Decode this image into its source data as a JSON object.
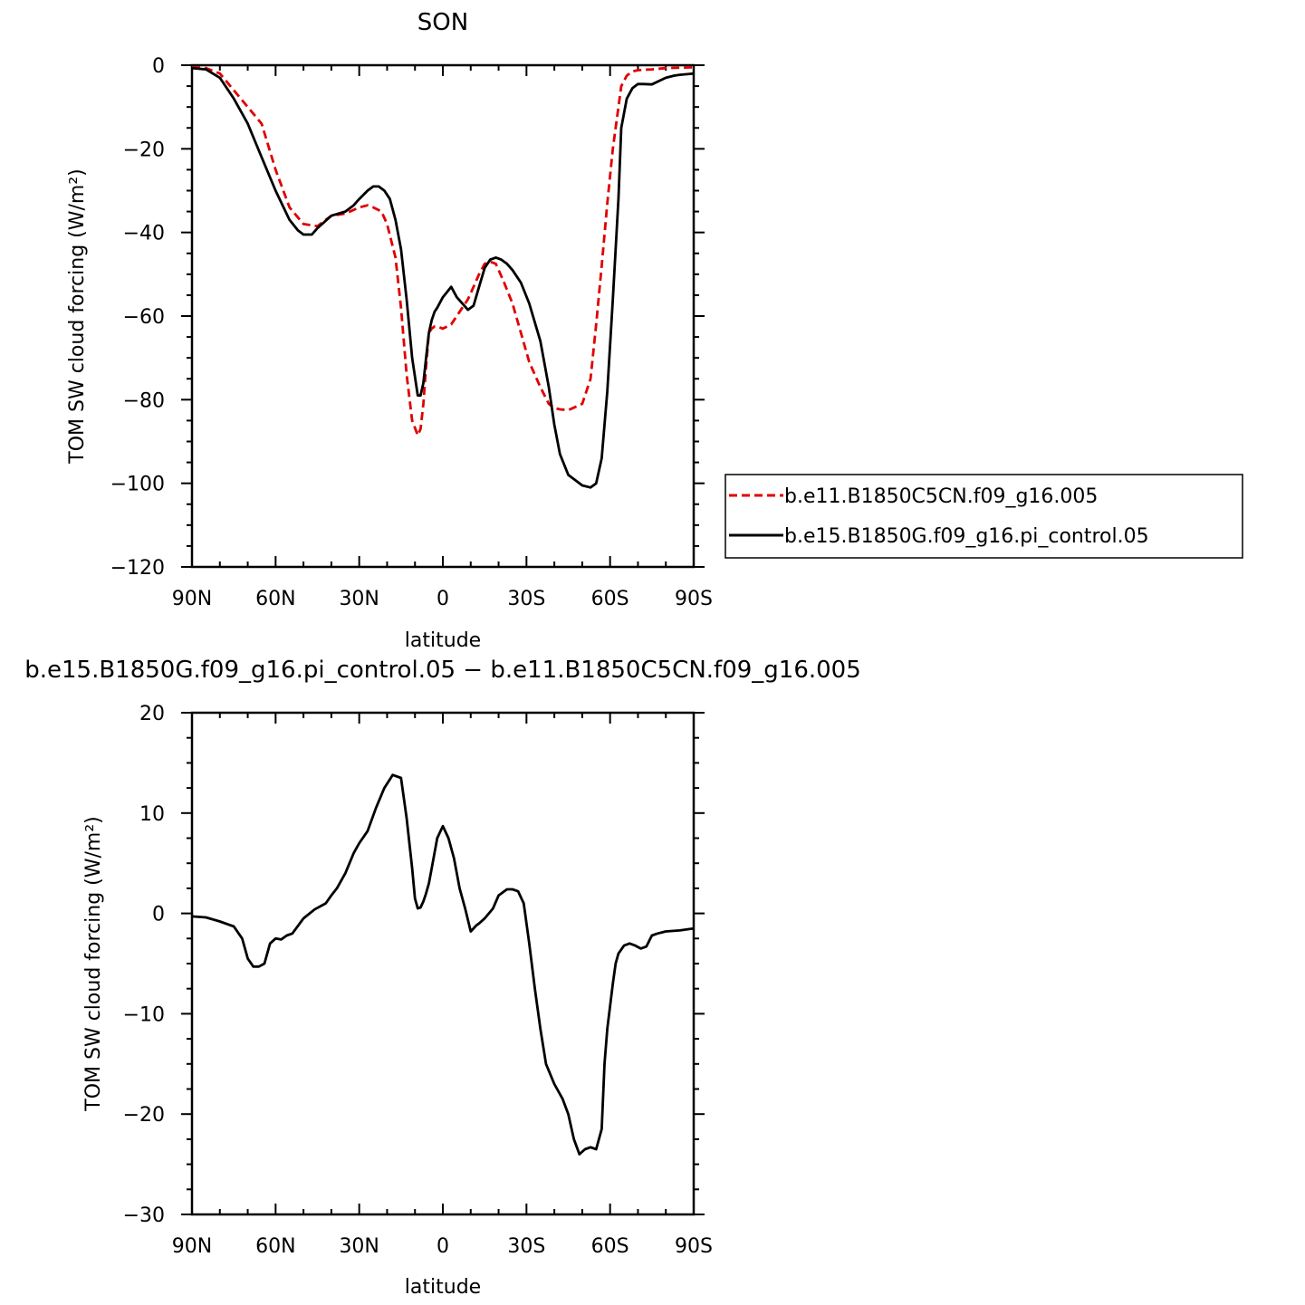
{
  "chart_data": [
    {
      "type": "line",
      "title": "SON",
      "xlabel": "latitude",
      "ylabel": "TOM SW cloud forcing (W/m²)",
      "xlim": [
        90,
        -90
      ],
      "ylim": [
        -120,
        0
      ],
      "x_ticks": [
        90,
        60,
        30,
        0,
        -30,
        -60,
        -90
      ],
      "x_tick_labels": [
        "90N",
        "60N",
        "30N",
        "0",
        "30S",
        "60S",
        "90S"
      ],
      "y_ticks": [
        0,
        -20,
        -40,
        -60,
        -80,
        -100,
        -120
      ],
      "y_tick_labels": [
        "0",
        "−20",
        "−40",
        "−60",
        "−80",
        "−100",
        "−120"
      ],
      "legend_position": "right",
      "series": [
        {
          "name": "b.e11.B1850C5CN.f09_g16.005",
          "color": "#e00000",
          "dash": "dashed",
          "x": [
            90,
            85,
            80,
            75,
            70,
            65,
            60,
            55,
            50,
            45,
            40,
            35,
            30,
            27,
            25,
            22,
            20,
            17,
            15,
            13,
            11,
            9,
            8,
            7,
            6,
            5,
            4,
            3,
            2,
            0,
            -3,
            -5,
            -7,
            -9,
            -11,
            -13,
            -15,
            -17,
            -19,
            -20,
            -22,
            -25,
            -28,
            -31,
            -35,
            -38,
            -40,
            -42,
            -45,
            -50,
            -53,
            -55,
            -57,
            -59,
            -61,
            -63,
            -64,
            -66,
            -68,
            -70,
            -72,
            -75,
            -80,
            -90
          ],
          "y": [
            -0.5,
            -0.7,
            -2,
            -6,
            -10,
            -14,
            -25,
            -34,
            -38,
            -38.5,
            -36,
            -35.5,
            -34,
            -33.5,
            -34,
            -35,
            -38,
            -46,
            -58,
            -74,
            -85,
            -88.5,
            -87,
            -81,
            -72,
            -64,
            -63,
            -62.5,
            -62.5,
            -63,
            -62,
            -60,
            -58,
            -56,
            -53,
            -50,
            -47.5,
            -47,
            -47.5,
            -49,
            -52,
            -57,
            -64,
            -71,
            -77,
            -81,
            -82,
            -82.3,
            -82.5,
            -81,
            -75,
            -62,
            -48,
            -33,
            -20,
            -10,
            -5,
            -2.5,
            -1.5,
            -1.2,
            -1.1,
            -1,
            -0.7,
            -0.5
          ]
        },
        {
          "name": "b.e15.B1850G.f09_g16.pi_control.05",
          "color": "#000000",
          "dash": "solid",
          "x": [
            90,
            85,
            80,
            75,
            70,
            65,
            60,
            55,
            52,
            50,
            47,
            45,
            40,
            35,
            32,
            30,
            27,
            25,
            23,
            21,
            19,
            17,
            15,
            13,
            11,
            9,
            8,
            7,
            6,
            5,
            4,
            3,
            2,
            0,
            -3,
            -5,
            -7,
            -9,
            -11,
            -13,
            -15,
            -17,
            -19,
            -21,
            -23,
            -25,
            -28,
            -31,
            -35,
            -38,
            -40,
            -42,
            -45,
            -50,
            -53,
            -55,
            -57,
            -59,
            -61,
            -63,
            -64,
            -66,
            -68,
            -70,
            -72,
            -75,
            -80,
            -83,
            -85,
            -90
          ],
          "y": [
            -0.7,
            -1,
            -3,
            -8,
            -14,
            -22,
            -30,
            -37,
            -39.5,
            -40.5,
            -40.5,
            -39,
            -36,
            -35,
            -33.5,
            -32,
            -30,
            -29,
            -29,
            -30,
            -32,
            -37,
            -44,
            -56,
            -70,
            -79,
            -79,
            -76,
            -70,
            -64,
            -61,
            -59,
            -58,
            -55.5,
            -53,
            -55.5,
            -57,
            -58.5,
            -57.5,
            -53,
            -48.5,
            -46.5,
            -46,
            -46.5,
            -47.5,
            -49,
            -52,
            -57,
            -66,
            -77,
            -86,
            -93,
            -98,
            -100.5,
            -101,
            -100,
            -94,
            -78,
            -56,
            -32,
            -15,
            -8,
            -5.5,
            -4.5,
            -4.5,
            -4.6,
            -3,
            -2.5,
            -2.3,
            -2
          ]
        }
      ]
    },
    {
      "type": "line",
      "title": "b.e15.B1850G.f09_g16.pi_control.05 − b.e11.B1850C5CN.f09_g16.005",
      "xlabel": "latitude",
      "ylabel": "TOM SW cloud forcing (W/m²)",
      "xlim": [
        90,
        -90
      ],
      "ylim": [
        -30,
        20
      ],
      "x_ticks": [
        90,
        60,
        30,
        0,
        -30,
        -60,
        -90
      ],
      "x_tick_labels": [
        "90N",
        "60N",
        "30N",
        "0",
        "30S",
        "60S",
        "90S"
      ],
      "y_ticks": [
        20,
        10,
        0,
        -10,
        -20,
        -30
      ],
      "y_tick_labels": [
        "20",
        "10",
        "0",
        "−10",
        "−20",
        "−30"
      ],
      "series": [
        {
          "color": "#000000",
          "dash": "solid",
          "x": [
            90,
            85,
            80,
            75,
            72,
            70,
            68,
            66,
            64,
            62,
            60,
            58,
            56,
            54,
            50,
            46,
            42,
            40,
            38,
            35,
            32,
            30,
            27,
            24,
            21,
            18,
            15,
            13,
            11,
            10,
            9,
            8,
            7,
            6,
            5,
            4,
            2,
            0,
            -2,
            -4,
            -5,
            -6,
            -8,
            -10,
            -12,
            -13,
            -15,
            -18,
            -20,
            -23,
            -25,
            -27,
            -29,
            -31,
            -33,
            -35,
            -37,
            -40,
            -43,
            -45,
            -47,
            -49,
            -51,
            -53,
            -55,
            -57,
            -58,
            -59,
            -61,
            -62,
            -63,
            -65,
            -67,
            -69,
            -71,
            -73,
            -75,
            -77,
            -80,
            -85,
            -90
          ],
          "y": [
            -0.3,
            -0.4,
            -0.8,
            -1.3,
            -2.5,
            -4.5,
            -5.3,
            -5.3,
            -5,
            -3,
            -2.5,
            -2.6,
            -2.2,
            -2,
            -0.5,
            0.4,
            1,
            1.8,
            2.5,
            4,
            6,
            7,
            8.2,
            10.5,
            12.5,
            13.8,
            13.5,
            9.5,
            4.5,
            1.5,
            0.5,
            0.6,
            1.2,
            2,
            3,
            4.5,
            7.5,
            8.7,
            7.5,
            5.5,
            4,
            2.5,
            0.5,
            -1.8,
            -1.2,
            -1,
            -0.5,
            0.5,
            1.8,
            2.4,
            2.4,
            2.2,
            1,
            -3,
            -7.5,
            -11.5,
            -15,
            -17,
            -18.5,
            -20,
            -22.5,
            -24,
            -23.5,
            -23.3,
            -23.5,
            -21.5,
            -15,
            -11.5,
            -7,
            -5,
            -4,
            -3.2,
            -3,
            -3.2,
            -3.5,
            -3.3,
            -2.2,
            -2,
            -1.8,
            -1.7,
            -1.5
          ]
        }
      ]
    }
  ]
}
